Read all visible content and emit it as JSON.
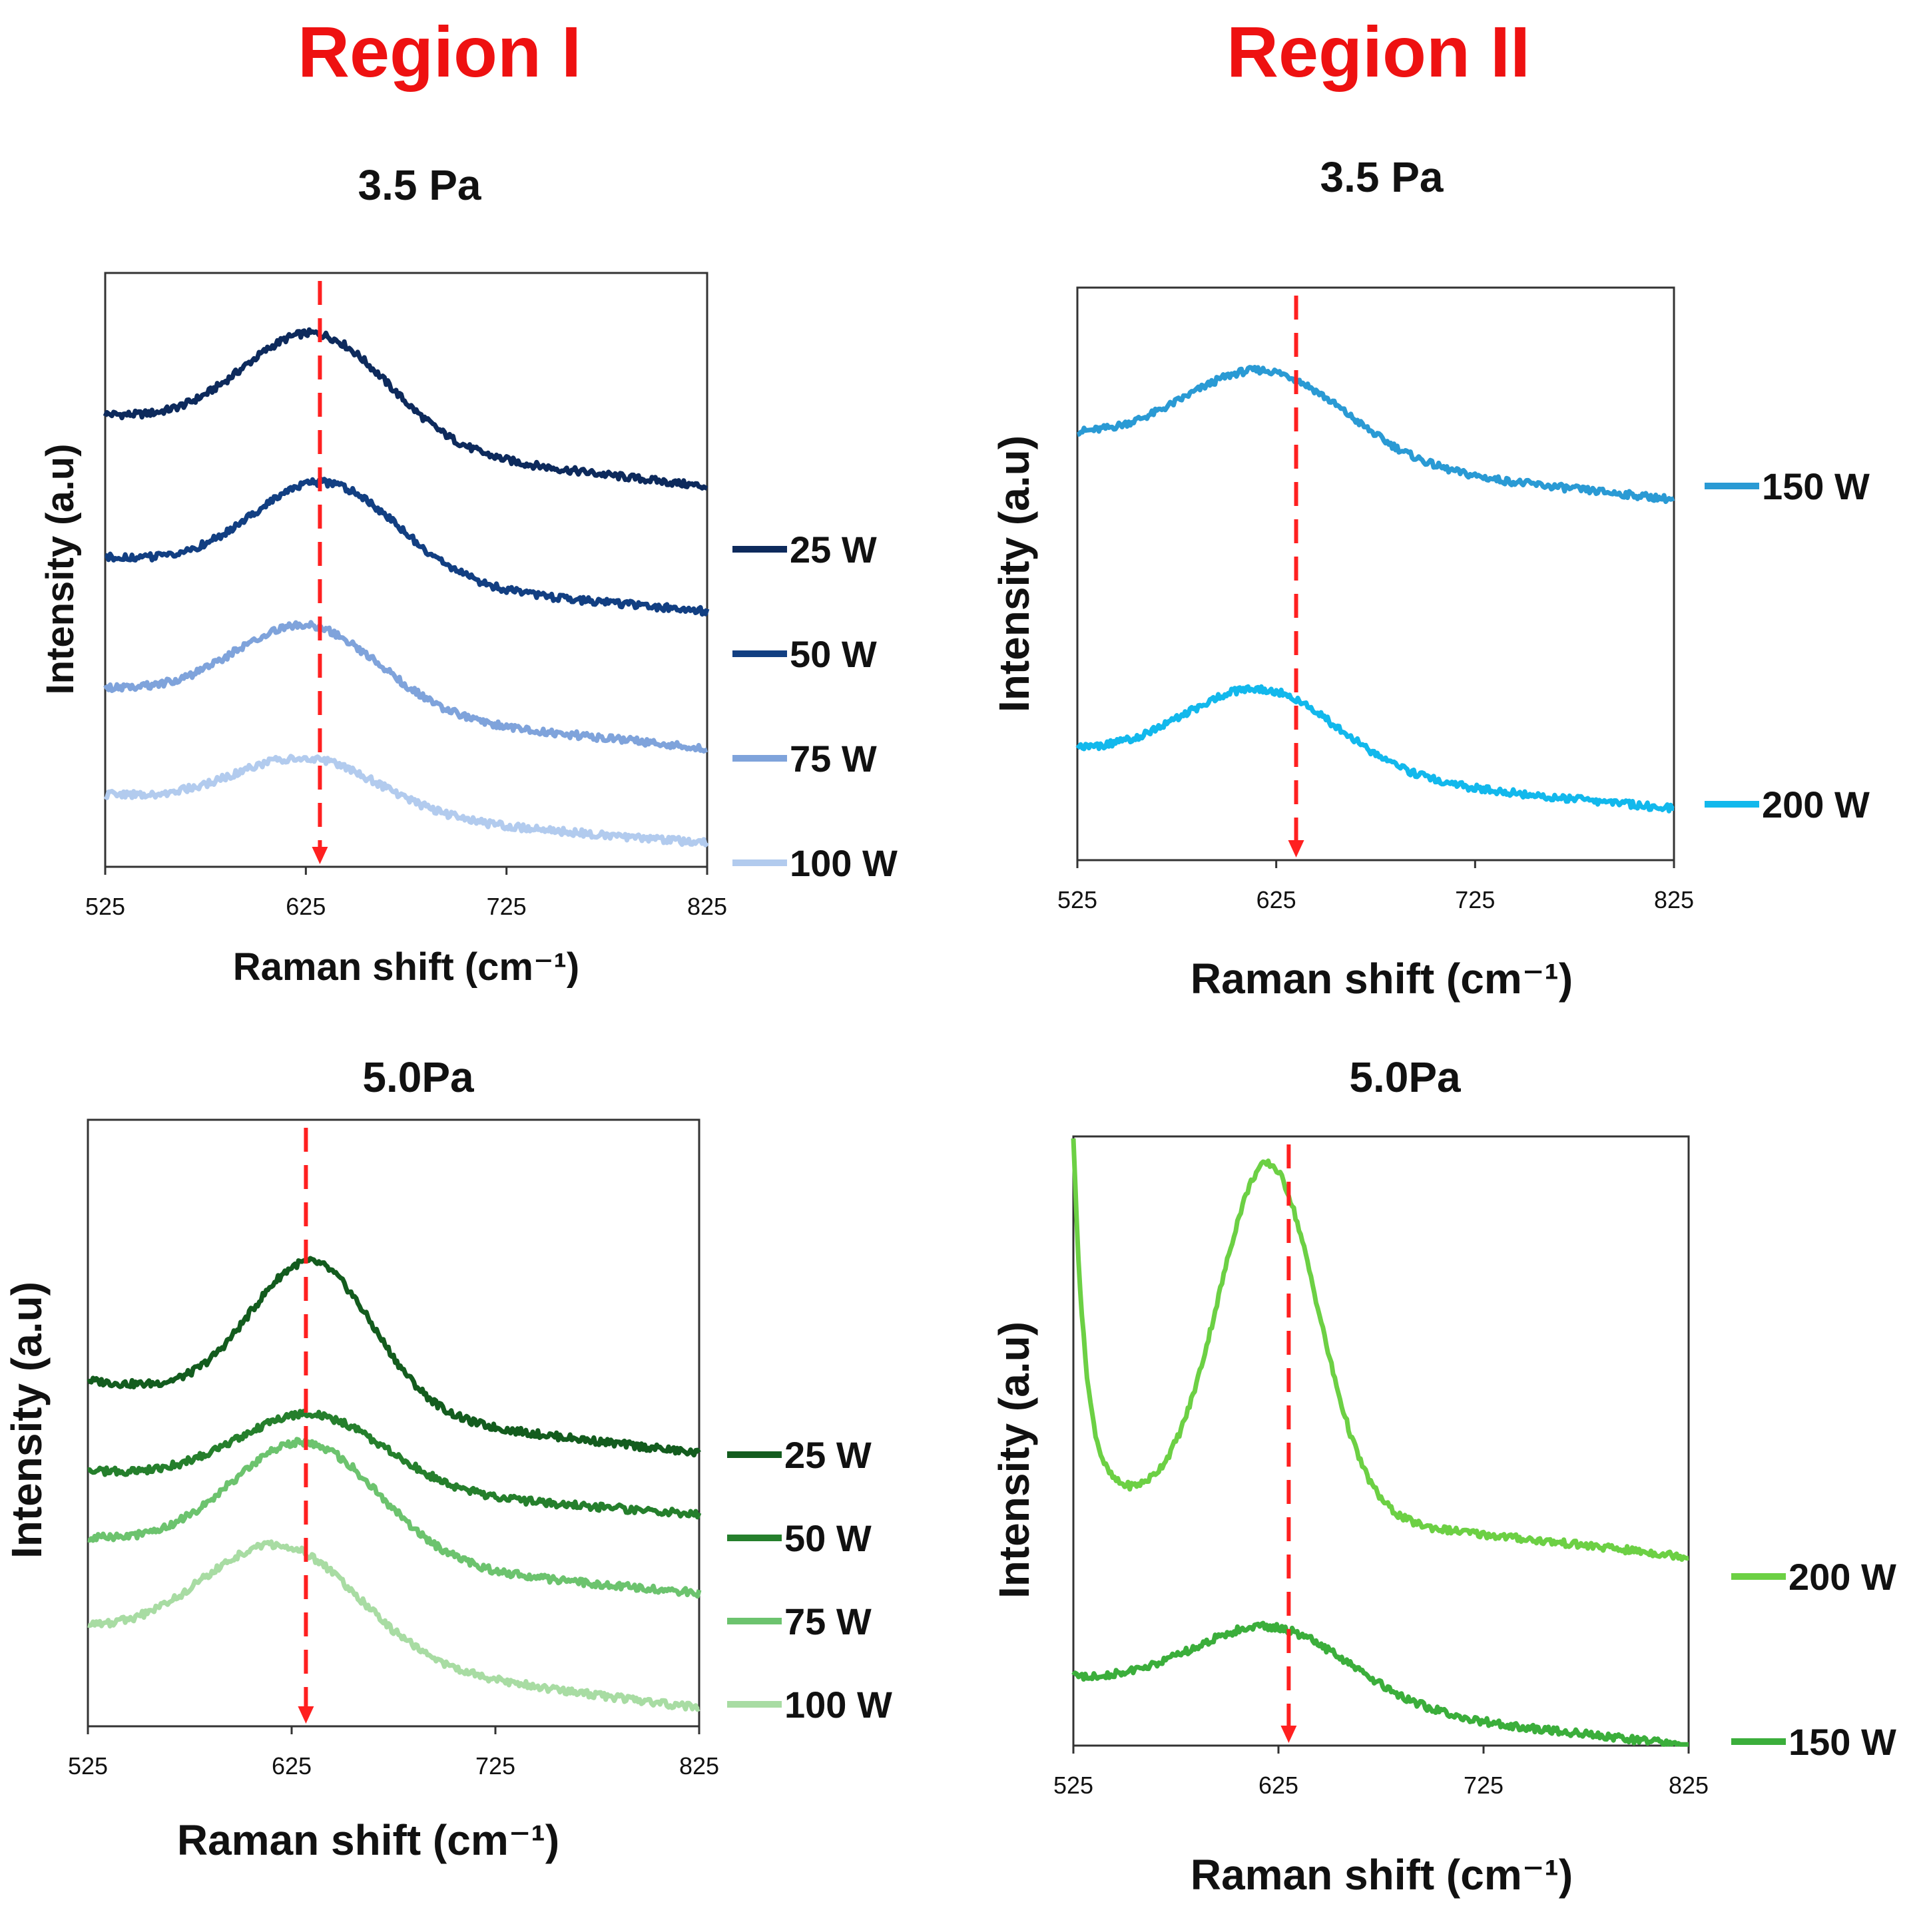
{
  "figure": {
    "regions": [
      {
        "title": "Region I"
      },
      {
        "title": "Region II"
      }
    ]
  },
  "chart_data": [
    {
      "type": "line",
      "title": "3.5 Pa",
      "xlabel": "Raman shift (cm⁻¹)",
      "ylabel": "Intensity (a.u)",
      "xlim": [
        525,
        825
      ],
      "xticks": [
        "525",
        "625",
        "725",
        "825"
      ],
      "yticks": "none",
      "grid": false,
      "legend": "right",
      "reference_line": {
        "x": 632,
        "style": "dashed",
        "color": "#ff2020"
      },
      "series": [
        {
          "name": "25 W",
          "color": "#0d2a5c",
          "baseline": 0.76,
          "right": 0.64,
          "peak_x": 630,
          "peak": 0.94,
          "width": 36
        },
        {
          "name": "50 W",
          "color": "#123f82",
          "baseline": 0.52,
          "right": 0.43,
          "peak_x": 635,
          "peak": 0.68,
          "width": 36
        },
        {
          "name": "75 W",
          "color": "#7fa3db",
          "baseline": 0.3,
          "right": 0.2,
          "peak_x": 626,
          "peak": 0.44,
          "width": 36
        },
        {
          "name": "100 W",
          "color": "#b2cbee",
          "baseline": 0.12,
          "right": 0.04,
          "peak_x": 626,
          "peak": 0.21,
          "width": 36
        }
      ]
    },
    {
      "type": "line",
      "title": "3.5 Pa",
      "xlabel": "Raman shift (cm⁻¹)",
      "ylabel": "Intensity (a.u)",
      "xlim": [
        525,
        825
      ],
      "xticks": [
        "525",
        "625",
        "725",
        "825"
      ],
      "yticks": "none",
      "grid": false,
      "legend": "right",
      "reference_line": {
        "x": 635,
        "style": "dashed",
        "color": "#ff2020"
      },
      "series": [
        {
          "name": "150 W",
          "color": "#2a9ad4",
          "baseline": 0.74,
          "right": 0.63,
          "peak_x": 620,
          "peak": 0.89,
          "width": 40
        },
        {
          "name": "200 W",
          "color": "#12b8ec",
          "baseline": 0.19,
          "right": 0.09,
          "peak_x": 618,
          "peak": 0.33,
          "width": 38
        }
      ]
    },
    {
      "type": "line",
      "title": "5.0Pa",
      "xlabel": "Raman shift (cm⁻¹)",
      "ylabel": "Intensity (a.u)",
      "xlim": [
        525,
        825
      ],
      "xticks": [
        "525",
        "625",
        "725",
        "825"
      ],
      "yticks": "none",
      "grid": false,
      "legend": "right",
      "reference_line": {
        "x": 632,
        "style": "dashed",
        "color": "#ff2020"
      },
      "series": [
        {
          "name": "25 W",
          "color": "#135c1e",
          "baseline": 0.57,
          "right": 0.45,
          "peak_x": 635,
          "peak": 0.81,
          "width": 30
        },
        {
          "name": "50 W",
          "color": "#257f2c",
          "baseline": 0.42,
          "right": 0.35,
          "peak_x": 635,
          "peak": 0.54,
          "width": 36
        },
        {
          "name": "75 W",
          "color": "#6cc36e",
          "baseline": 0.31,
          "right": 0.22,
          "peak_x": 632,
          "peak": 0.5,
          "width": 36
        },
        {
          "name": "100 W",
          "color": "#a8dca3",
          "baseline": 0.16,
          "right": 0.03,
          "peak_x": 620,
          "peak": 0.34,
          "width": 38
        }
      ]
    },
    {
      "type": "line",
      "title": "5.0Pa",
      "xlabel": "Raman shift (cm⁻¹)",
      "ylabel": "Intensity (a.u)",
      "xlim": [
        525,
        825
      ],
      "xticks": [
        "525",
        "625",
        "725",
        "825"
      ],
      "yticks": "none",
      "grid": false,
      "legend": "right",
      "reference_line": {
        "x": 630,
        "style": "dashed",
        "color": "#ff2020"
      },
      "series": [
        {
          "name": "200 W",
          "color": "#6cd044",
          "baseline": 0.42,
          "right": 0.31,
          "peak_x": 620,
          "peak": 0.99,
          "width": 24,
          "start": 1.0
        },
        {
          "name": "150 W",
          "color": "#3bae3b",
          "baseline": 0.11,
          "right": 0.0,
          "peak_x": 622,
          "peak": 0.23,
          "width": 38
        }
      ]
    }
  ]
}
